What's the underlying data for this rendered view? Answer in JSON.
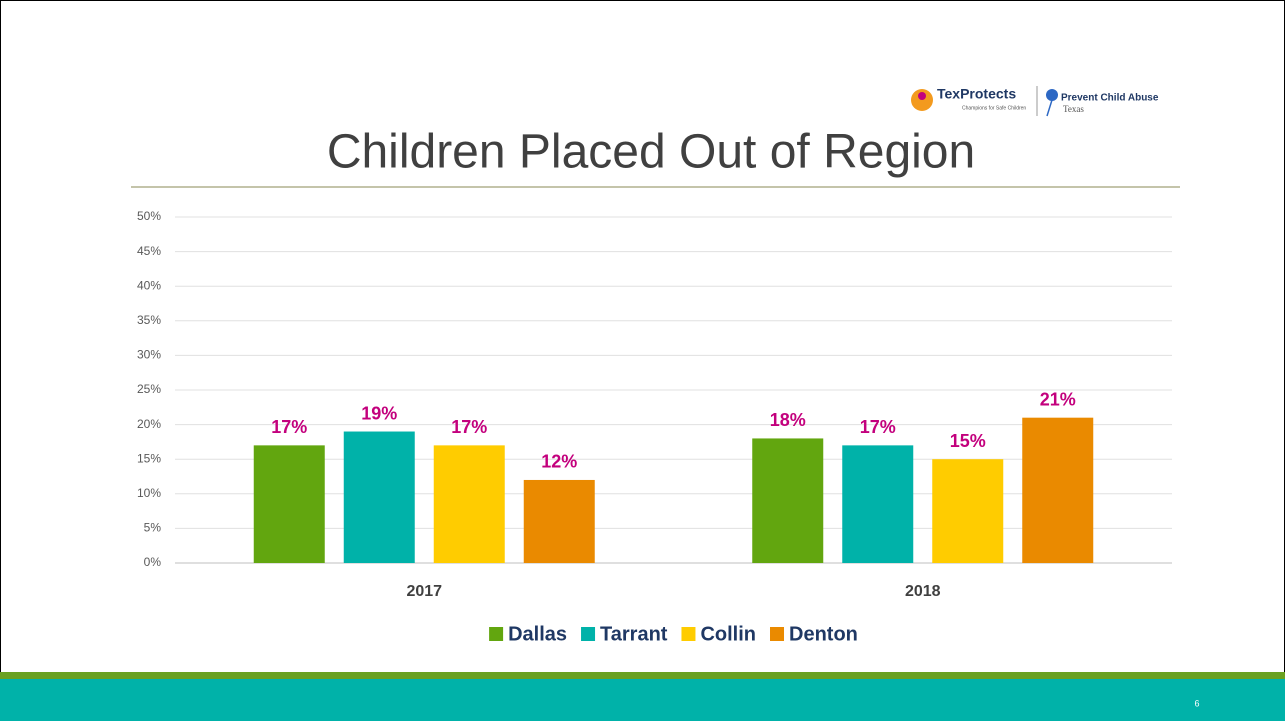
{
  "logos": {
    "texprotects": "TexProtects",
    "texprotects_tagline": "Champions for Safe Children",
    "pca": "Prevent Child Abuse",
    "pca_state": "Texas"
  },
  "page_number": "6",
  "chart_data": {
    "type": "bar",
    "title": "Children Placed Out of Region",
    "categories": [
      "2017",
      "2018"
    ],
    "series": [
      {
        "name": "Dallas",
        "color": "#62a60f",
        "values": [
          17,
          18
        ],
        "value_labels": [
          "17%",
          "18%"
        ]
      },
      {
        "name": "Tarrant",
        "color": "#00b2a9",
        "values": [
          19,
          17
        ],
        "value_labels": [
          "19%",
          "17%"
        ]
      },
      {
        "name": "Collin",
        "color": "#ffcc00",
        "values": [
          17,
          15
        ],
        "value_labels": [
          "17%",
          "15%"
        ]
      },
      {
        "name": "Denton",
        "color": "#ea8a00",
        "values": [
          12,
          21
        ],
        "value_labels": [
          "12%",
          "21%"
        ]
      }
    ],
    "ylim": [
      0,
      50
    ],
    "yticks": [
      {
        "value": 0,
        "label": "0%"
      },
      {
        "value": 5,
        "label": "5%"
      },
      {
        "value": 10,
        "label": "10%"
      },
      {
        "value": 15,
        "label": "15%"
      },
      {
        "value": 20,
        "label": "20%"
      },
      {
        "value": 25,
        "label": "25%"
      },
      {
        "value": 30,
        "label": "30%"
      },
      {
        "value": 35,
        "label": "35%"
      },
      {
        "value": 40,
        "label": "40%"
      },
      {
        "value": 45,
        "label": "45%"
      },
      {
        "value": 50,
        "label": "50%"
      }
    ],
    "grid": true,
    "legend": "bottom",
    "value_label_color": "#c3007d"
  }
}
